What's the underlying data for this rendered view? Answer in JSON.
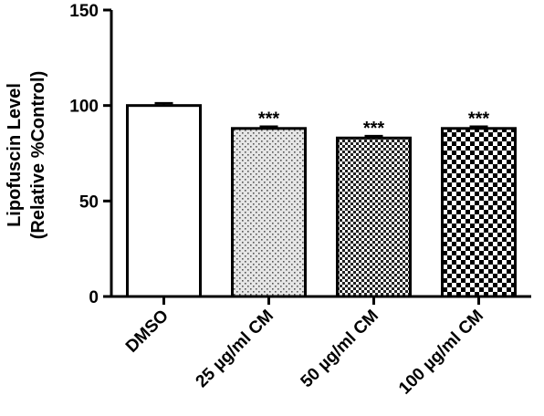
{
  "chart_data": {
    "type": "bar",
    "ylabel_line1": "Lipofuscin Level",
    "ylabel_line2": "(Relative %Control)",
    "ylim": [
      0,
      150
    ],
    "yticks": [
      0,
      50,
      100,
      150
    ],
    "categories": [
      "DMSO",
      "25 µg/ml CM",
      "50 µg/ml CM",
      "100 µg/ml CM"
    ],
    "values": [
      100,
      88,
      83,
      88
    ],
    "errors": [
      1.2,
      1.0,
      1.0,
      1.0
    ],
    "significance": [
      "",
      "***",
      "***",
      "***"
    ],
    "bar_patterns": [
      "solid-white",
      "fine-dots",
      "fine-checker",
      "coarse-checker"
    ],
    "colors": {
      "ink": "#000000",
      "fill": "#ffffff"
    }
  }
}
